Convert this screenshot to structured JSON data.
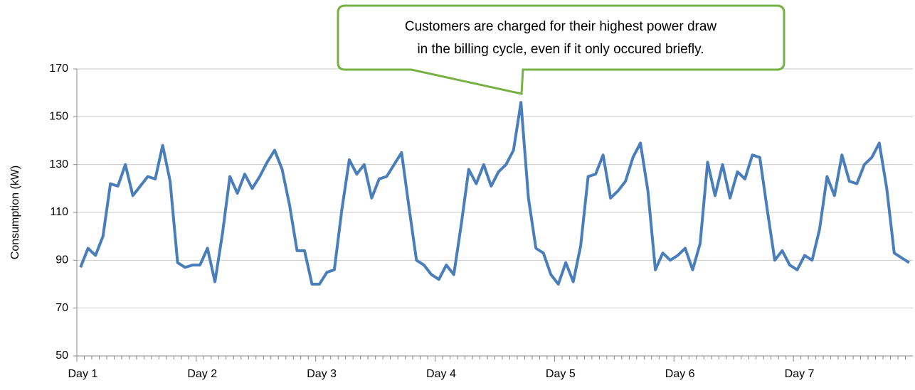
{
  "chart_data": {
    "type": "line",
    "ylabel": "Consumption  (kW)",
    "annotation": [
      "Customers are charged for their highest power draw",
      "in the billing cycle, even if it only occured briefly."
    ],
    "categories": [
      "Day 1",
      null,
      null,
      null,
      null,
      null,
      null,
      null,
      null,
      null,
      null,
      null,
      null,
      null,
      null,
      null,
      "Day 2",
      null,
      null,
      null,
      null,
      null,
      null,
      null,
      null,
      null,
      null,
      null,
      null,
      null,
      null,
      null,
      "Day 3",
      null,
      null,
      null,
      null,
      null,
      null,
      null,
      null,
      null,
      null,
      null,
      null,
      null,
      null,
      null,
      "Day 4",
      null,
      null,
      null,
      null,
      null,
      null,
      null,
      null,
      null,
      null,
      null,
      null,
      null,
      null,
      null,
      "Day 5",
      null,
      null,
      null,
      null,
      null,
      null,
      null,
      null,
      null,
      null,
      null,
      null,
      null,
      null,
      null,
      "Day 6",
      null,
      null,
      null,
      null,
      null,
      null,
      null,
      null,
      null,
      null,
      null,
      null,
      null,
      null,
      null,
      "Day 7",
      null,
      null,
      null,
      null,
      null,
      null,
      null,
      null,
      null,
      null,
      null,
      null,
      null,
      null,
      null
    ],
    "series": [
      {
        "name": "Consumption",
        "color": "#4a7ebb",
        "values": [
          87,
          95,
          92,
          100,
          122,
          121,
          130,
          117,
          121,
          125,
          124,
          138,
          123,
          89,
          87,
          88,
          88,
          95,
          81,
          101,
          125,
          118,
          126,
          120,
          125,
          131,
          136,
          128,
          113,
          94,
          94,
          80,
          80,
          85,
          86,
          111,
          132,
          126,
          130,
          116,
          124,
          125,
          130,
          135,
          112,
          90,
          88,
          84,
          82,
          88,
          84,
          105,
          128,
          122,
          130,
          121,
          127,
          130,
          136,
          156,
          116,
          95,
          93,
          84,
          80,
          89,
          81,
          96,
          125,
          126,
          134,
          116,
          119,
          123,
          133,
          139,
          119,
          86,
          93,
          90,
          92,
          95,
          86,
          97,
          131,
          117,
          130,
          116,
          127,
          124,
          134,
          133,
          111,
          90,
          94,
          88,
          86,
          92,
          90,
          103,
          125,
          117,
          134,
          123,
          122,
          130,
          133,
          139,
          120,
          93,
          91,
          89
        ]
      }
    ],
    "ylim": [
      50,
      170
    ],
    "yticks": [
      50,
      70,
      90,
      110,
      130,
      150,
      170
    ],
    "grid": true
  }
}
